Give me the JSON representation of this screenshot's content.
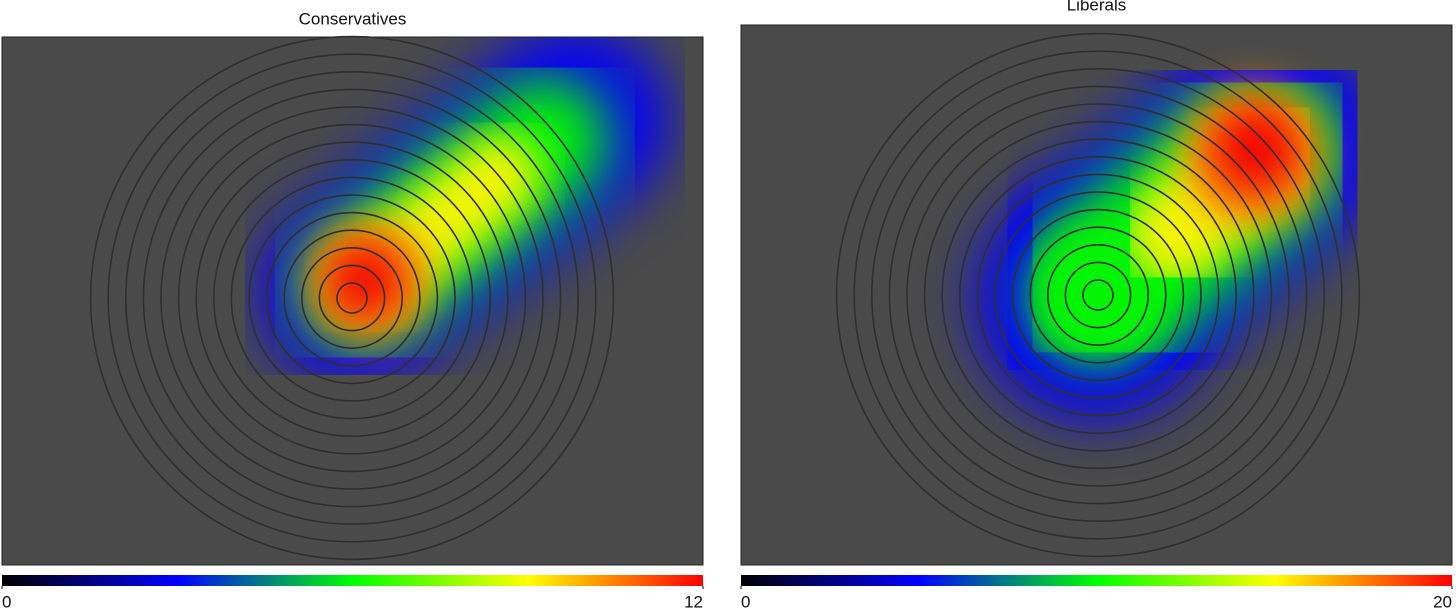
{
  "chart_data": [
    {
      "type": "heatmap",
      "title": "Conservatives",
      "clim": [
        0,
        12
      ],
      "cticks": [
        0,
        12
      ],
      "colormap": [
        "#000000",
        "#0000ff",
        "#00ff00",
        "#ffff00",
        "#ff0000"
      ]
    },
    {
      "type": "heatmap",
      "title": "Liberals",
      "clim": [
        0,
        20
      ],
      "cticks": [
        0,
        20
      ],
      "colormap": [
        "#000000",
        "#0000ff",
        "#00ff00",
        "#ffff00",
        "#ff0000"
      ]
    }
  ]
}
